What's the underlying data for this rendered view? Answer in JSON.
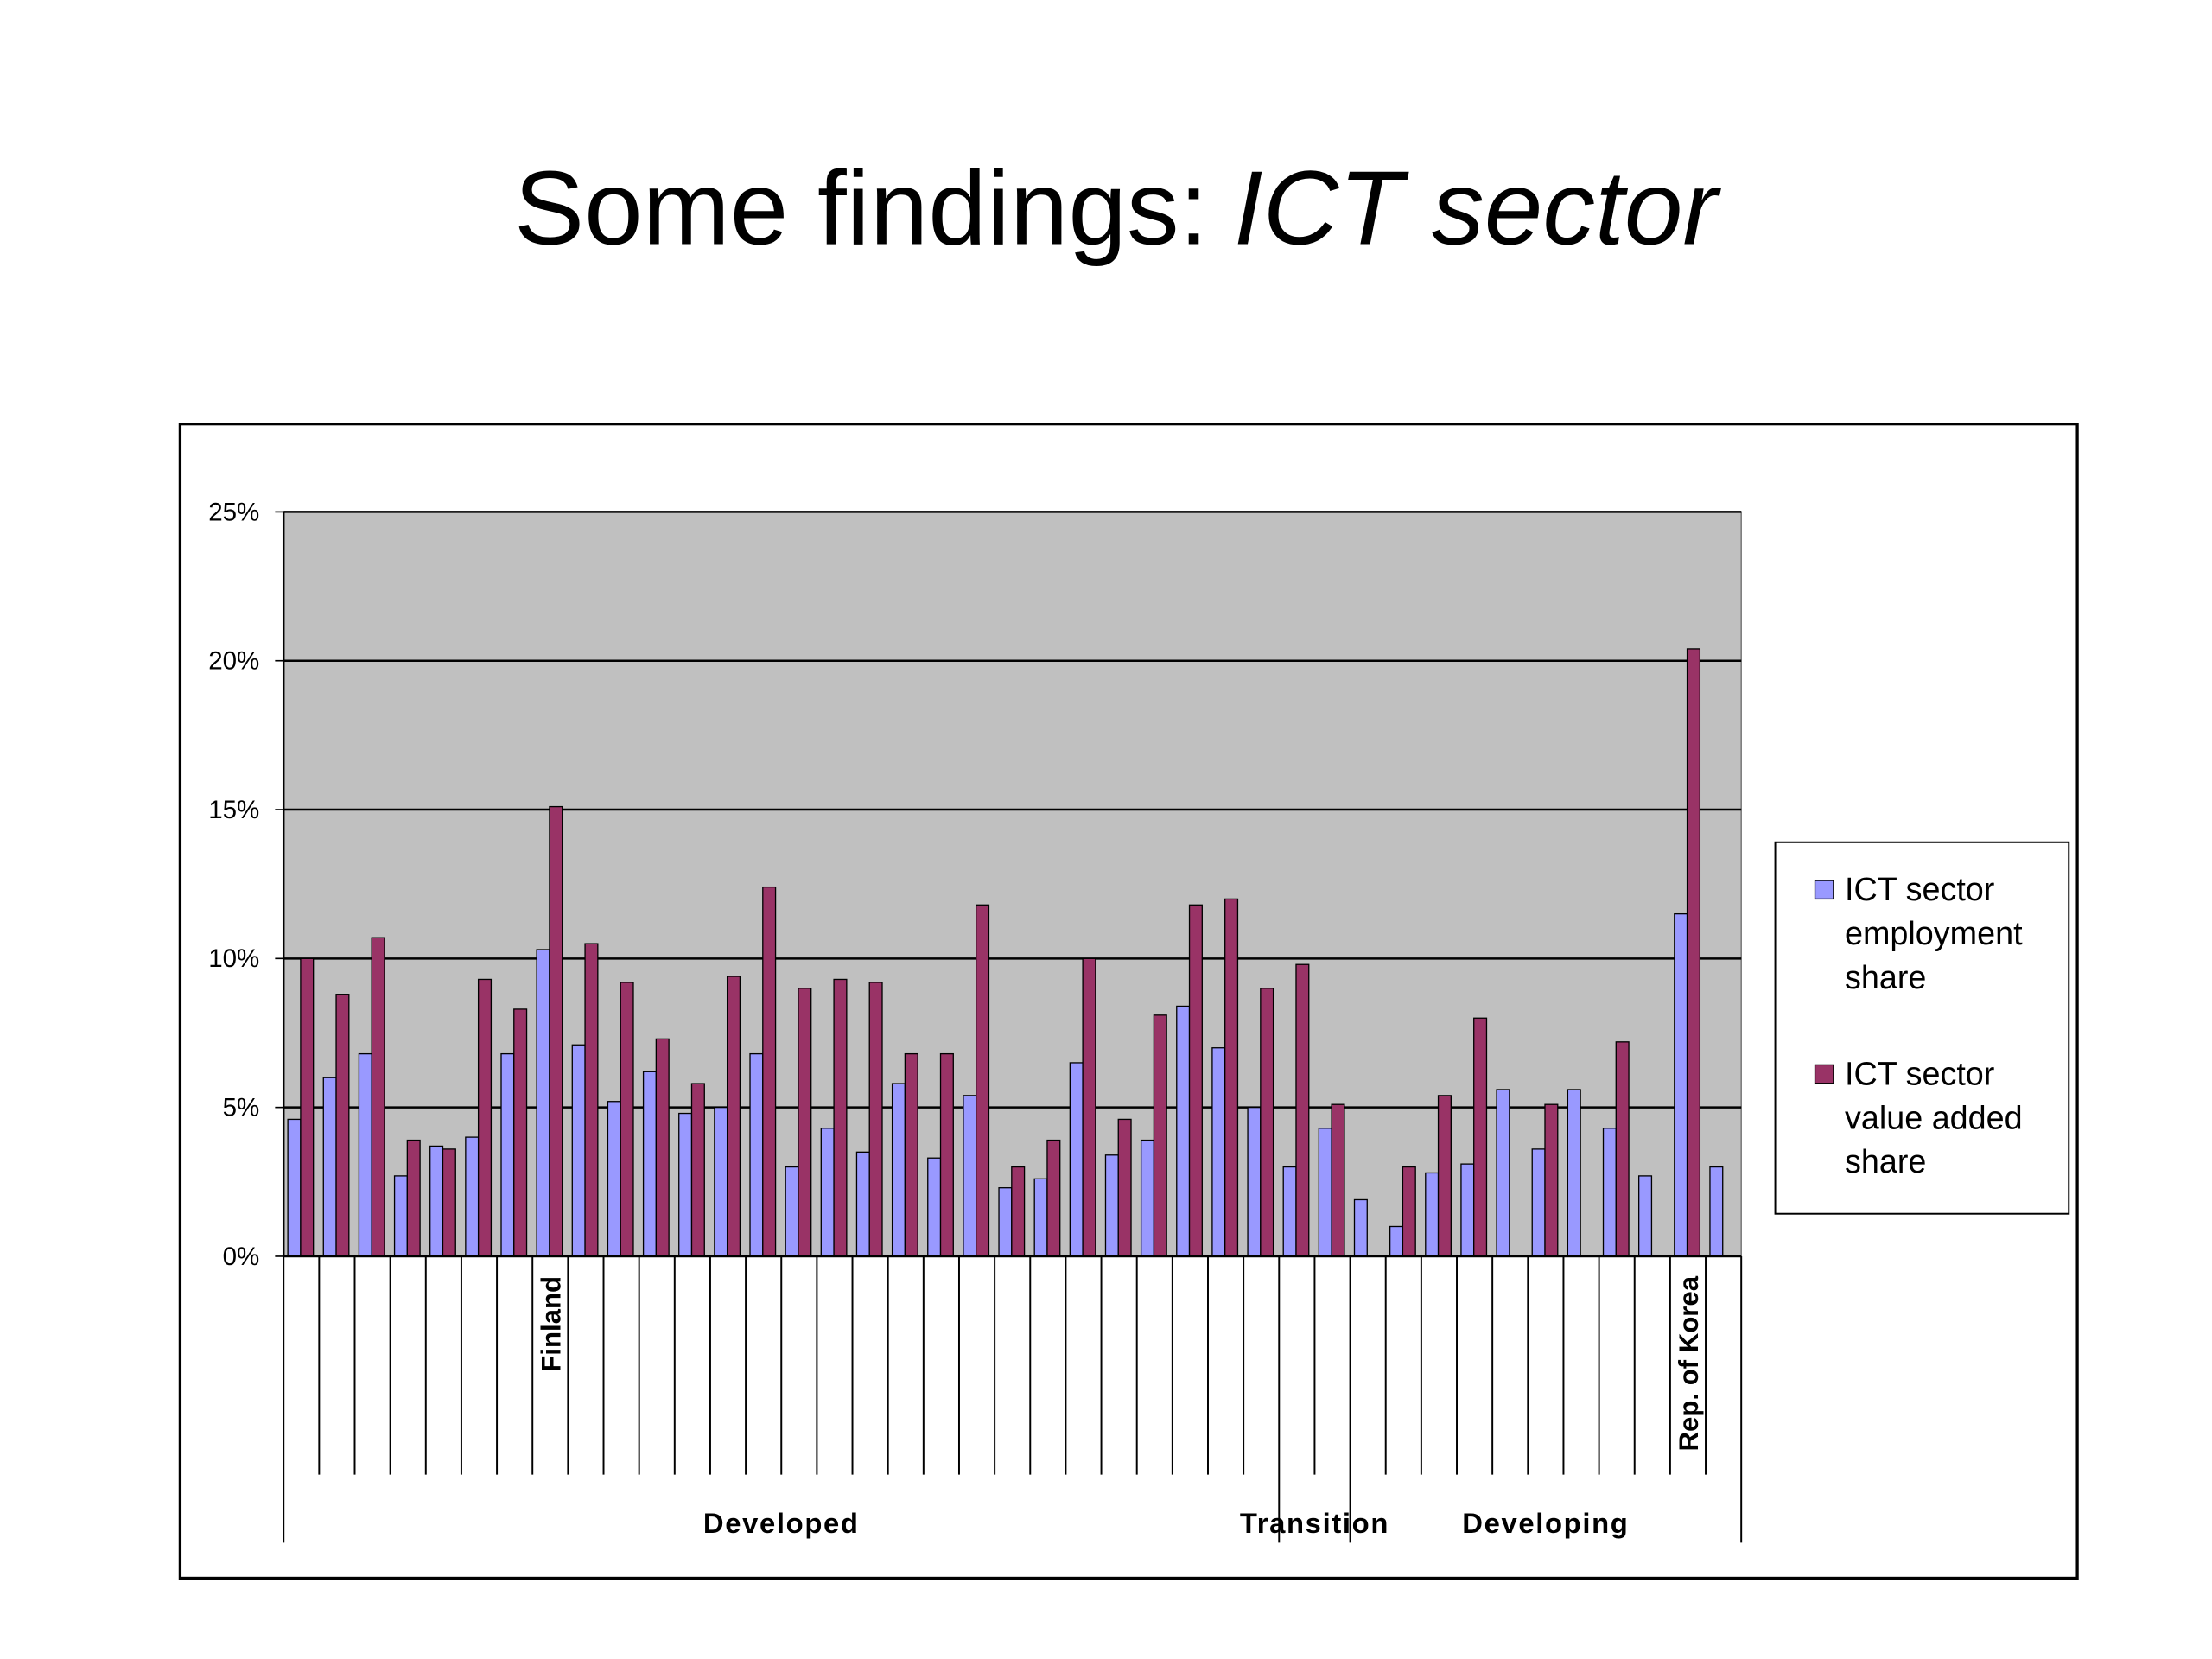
{
  "chart_data": {
    "type": "bar",
    "title": {
      "text": "Some findings:",
      "emphasis": "ICT sector"
    },
    "categories": [
      null,
      null,
      null,
      null,
      null,
      null,
      null,
      "Finland",
      null,
      null,
      null,
      null,
      null,
      null,
      null,
      null,
      null,
      null,
      null,
      null,
      null,
      null,
      null,
      null,
      null,
      null,
      null,
      null,
      null,
      null,
      null,
      null,
      null,
      null,
      null,
      null,
      null,
      null,
      null,
      "Rep. of Korea",
      null
    ],
    "groups": [
      {
        "name": "Developed",
        "count": 28
      },
      {
        "name": "Transition",
        "count": 2
      },
      {
        "name": "Developing",
        "count": 11
      }
    ],
    "series": [
      {
        "name": "ICT sector employment share",
        "color": "#9999ff",
        "values": [
          4.6,
          6.0,
          6.8,
          2.7,
          3.7,
          4.0,
          6.8,
          10.3,
          7.1,
          5.2,
          6.2,
          4.8,
          5.0,
          6.8,
          3.0,
          4.3,
          3.5,
          5.8,
          3.3,
          5.4,
          2.3,
          2.6,
          6.5,
          3.4,
          3.9,
          8.4,
          7.0,
          5.0,
          3.0,
          4.3,
          1.9,
          1.0,
          2.8,
          3.1,
          5.6,
          3.6,
          5.6,
          4.3,
          2.7,
          11.5,
          3.0
        ]
      },
      {
        "name": "ICT sector value added share",
        "color": "#993366",
        "values": [
          10.0,
          8.8,
          10.7,
          3.9,
          3.6,
          9.3,
          8.3,
          15.1,
          10.5,
          9.2,
          7.3,
          5.8,
          9.4,
          12.4,
          9.0,
          9.3,
          9.2,
          6.8,
          6.8,
          11.8,
          3.0,
          3.9,
          10.0,
          4.6,
          8.1,
          11.8,
          12.0,
          9.0,
          9.8,
          5.1,
          null,
          3.0,
          5.4,
          8.0,
          null,
          5.1,
          null,
          7.2,
          null,
          20.4,
          null
        ]
      }
    ],
    "ylim": [
      0,
      25
    ],
    "yticks": [
      {
        "value": 0,
        "label": "0%"
      },
      {
        "value": 5,
        "label": "5%"
      },
      {
        "value": 10,
        "label": "10%"
      },
      {
        "value": 15,
        "label": "15%"
      },
      {
        "value": 20,
        "label": "20%"
      },
      {
        "value": 25,
        "label": "25%"
      }
    ],
    "grid": true,
    "plot_background": "#c0c0c0",
    "legend": "right"
  }
}
